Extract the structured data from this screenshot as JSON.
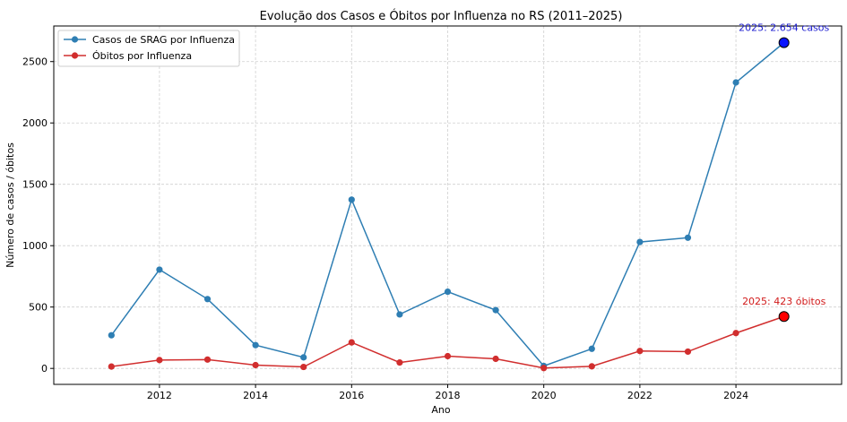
{
  "chart_data": {
    "type": "line",
    "title": "Evolução dos Casos e Óbitos por Influenza no RS (2011–2025)",
    "xlabel": "Ano",
    "ylabel": "Número de casos / óbitos",
    "x": [
      2011,
      2012,
      2013,
      2014,
      2015,
      2016,
      2017,
      2018,
      2019,
      2020,
      2021,
      2022,
      2023,
      2024,
      2025
    ],
    "xticks": [
      "2012",
      "2014",
      "2016",
      "2018",
      "2020",
      "2022",
      "2024"
    ],
    "yticks": [
      "0",
      "500",
      "1000",
      "1500",
      "2000",
      "2500"
    ],
    "xlim": [
      2009.8,
      2026.2
    ],
    "ylim": [
      -130,
      2790
    ],
    "grid": true,
    "legend_position": "top-left",
    "series": [
      {
        "name": "Casos de SRAG por Influenza",
        "color": "#2e7eb3",
        "values": [
          270,
          805,
          565,
          190,
          90,
          1375,
          440,
          625,
          475,
          20,
          160,
          1030,
          1065,
          2330,
          2654
        ]
      },
      {
        "name": "Óbitos por Influenza",
        "color": "#d12e2e",
        "values": [
          15,
          68,
          72,
          27,
          12,
          212,
          48,
          100,
          78,
          3,
          17,
          142,
          137,
          288,
          423
        ]
      }
    ],
    "annotations": [
      {
        "text": "2025: 2.654 casos",
        "x": 2025,
        "y": 2654,
        "color": "#1f1fd1",
        "marker": "#0a14ff"
      },
      {
        "text": "2025: 423 óbitos",
        "x": 2025,
        "y": 423,
        "color": "#d11a1a",
        "marker": "#ff0000"
      }
    ]
  }
}
